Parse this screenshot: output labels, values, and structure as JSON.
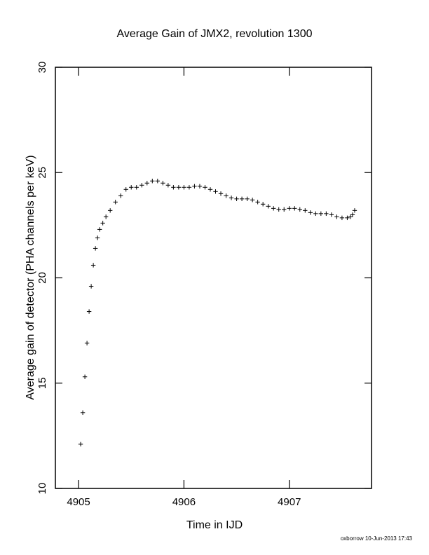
{
  "chart_data": {
    "type": "scatter",
    "title": "Average Gain of JMX2, revolution 1300",
    "xlabel": "Time in IJD",
    "ylabel": "Average gain of detector (PHA channels per keV)",
    "xlim": [
      4904.78,
      4907.78
    ],
    "ylim": [
      10,
      30
    ],
    "xticks": [
      4905,
      4906,
      4907
    ],
    "xtick_labels": [
      "4905",
      "4906",
      "4907"
    ],
    "yticks": [
      10,
      15,
      20,
      25,
      30
    ],
    "ytick_labels": [
      "10",
      "15",
      "20",
      "25",
      "30"
    ],
    "grid": false,
    "marker": "plus",
    "color": "#000000",
    "series": [
      {
        "x": [
          4905.02,
          4905.04,
          4905.06,
          4905.08,
          4905.1,
          4905.12,
          4905.14,
          4905.16,
          4905.18,
          4905.2,
          4905.23,
          4905.26,
          4905.3,
          4905.35,
          4905.4,
          4905.45,
          4905.5,
          4905.55,
          4905.6,
          4905.65,
          4905.7,
          4905.75,
          4905.8,
          4905.85,
          4905.9,
          4905.95,
          4906.0,
          4906.05,
          4906.1,
          4906.15,
          4906.2,
          4906.25,
          4906.3,
          4906.35,
          4906.4,
          4906.45,
          4906.5,
          4906.55,
          4906.6,
          4906.65,
          4906.7,
          4906.75,
          4906.8,
          4906.85,
          4906.9,
          4906.95,
          4907.0,
          4907.05,
          4907.1,
          4907.15,
          4907.2,
          4907.25,
          4907.3,
          4907.35,
          4907.4,
          4907.45,
          4907.5,
          4907.55,
          4907.58,
          4907.6,
          4907.62
        ],
        "y": [
          12.1,
          13.6,
          15.3,
          16.9,
          18.4,
          19.6,
          20.6,
          21.4,
          21.9,
          22.3,
          22.6,
          22.9,
          23.2,
          23.6,
          23.9,
          24.2,
          24.3,
          24.3,
          24.4,
          24.5,
          24.6,
          24.6,
          24.5,
          24.4,
          24.3,
          24.3,
          24.3,
          24.3,
          24.35,
          24.35,
          24.3,
          24.2,
          24.1,
          24.0,
          23.9,
          23.8,
          23.75,
          23.75,
          23.75,
          23.7,
          23.6,
          23.5,
          23.4,
          23.3,
          23.25,
          23.25,
          23.3,
          23.3,
          23.25,
          23.2,
          23.1,
          23.05,
          23.05,
          23.05,
          23.0,
          22.9,
          22.85,
          22.85,
          22.9,
          23.0,
          23.2
        ]
      }
    ]
  },
  "footer": "oxborrow 10-Jun-2013 17:43"
}
